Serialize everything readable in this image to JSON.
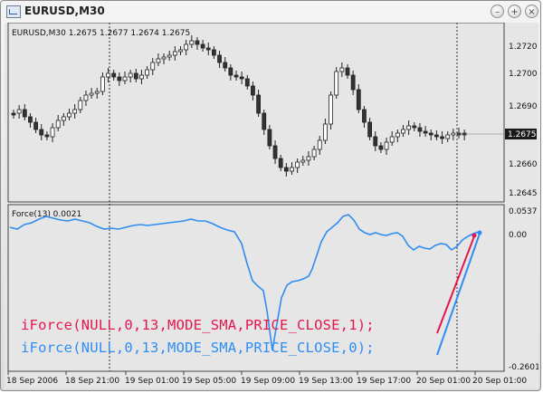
{
  "window": {
    "title": "EURUSD,M30",
    "minimize_label": "–",
    "maximize_label": "+",
    "close_label": "×"
  },
  "main_chart": {
    "header": "EURUSD,M30  1.2675 1.2677 1.2674 1.2675",
    "price_labels": [
      "1.2720",
      "1.2700",
      "1.2690",
      "1.2660",
      "1.2645"
    ],
    "current_price": "1.2675"
  },
  "indicator": {
    "header": "Force(13) 0.0021",
    "scale_labels": [
      "0.0537",
      "0.00",
      "-0.2601"
    ]
  },
  "time_labels": [
    "18 Sep 2006",
    "18 Sep 21:00",
    "19 Sep 01:00",
    "19 Sep 05:00",
    "19 Sep 09:00",
    "19 Sep 13:00",
    "19 Sep 17:00",
    "20 Sep 01:00",
    "20 Sep 01:00"
  ],
  "code_lines": {
    "line1": "iForce(NULL,0,13,MODE_SMA,PRICE_CLOSE,1);",
    "line2": "iForce(NULL,0,13,MODE_SMA,PRICE_CLOSE,0);"
  },
  "colors": {
    "line1": "#e3174f",
    "line2": "#2f8df2",
    "force_line": "#2f8df2",
    "bull_candle": "#ffffff",
    "bear_candle": "#333333"
  }
}
